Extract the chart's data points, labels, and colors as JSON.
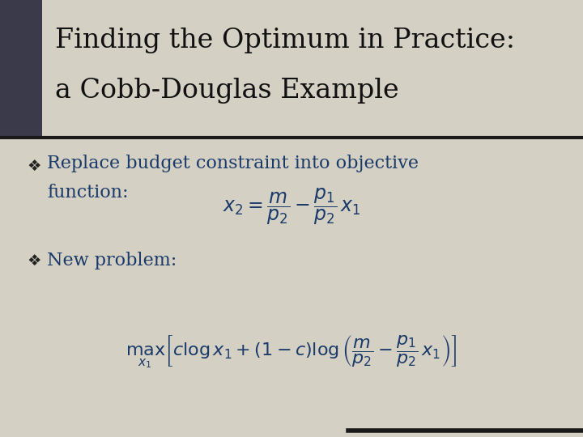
{
  "title_line1": "Finding the Optimum in Practice:",
  "title_line2": "a Cobb-Douglas Example",
  "bullet1_text1": "Replace budget constraint into objective",
  "bullet1_text2": "function:",
  "formula1": "$x_2 = \\dfrac{m}{p_2} - \\dfrac{p_1}{p_2}\\, x_1$",
  "bullet2_text": "New problem:",
  "formula2": "$\\max_{x_1} \\left[ c \\log x_1 + (1-c) \\log \\left( \\dfrac{m}{p_2} - \\dfrac{p_1}{p_2}\\, x_1 \\right) \\right]$",
  "background_color": "#d4d0c4",
  "title_bar_color": "#3a3a4a",
  "separator_color": "#1a1a1a",
  "text_color": "#1a3a6a",
  "title_color": "#111111",
  "title_fontsize": 24,
  "body_fontsize": 16,
  "formula1_fontsize": 17,
  "formula2_fontsize": 16,
  "bullet_symbol": "❖"
}
